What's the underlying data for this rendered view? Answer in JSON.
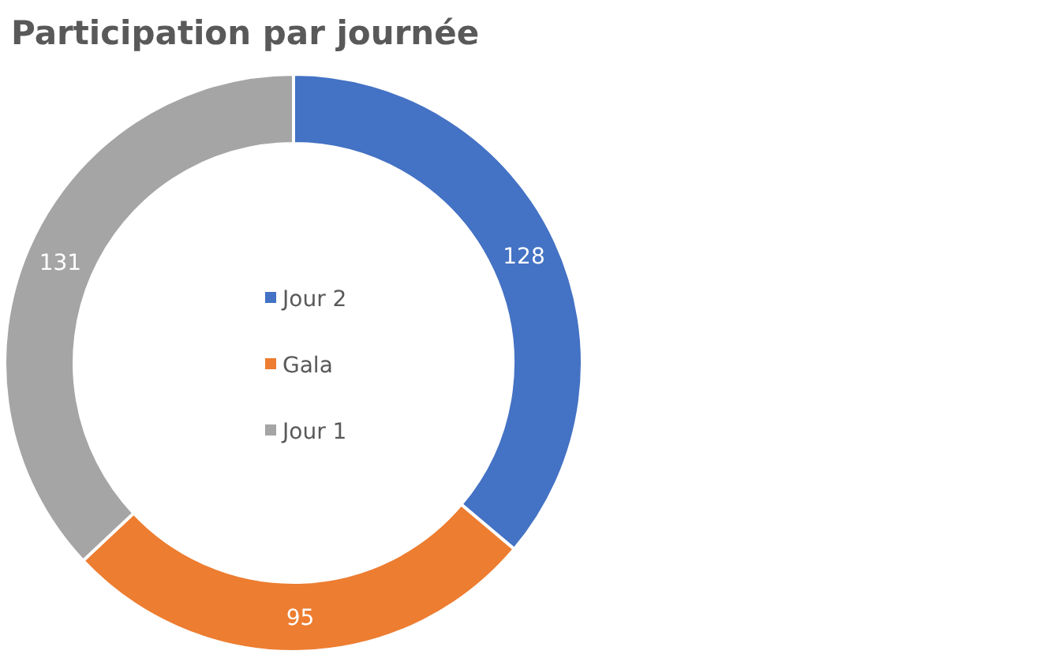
{
  "chart_data": {
    "type": "donut",
    "title": "Participation par journée",
    "categories": [
      "Jour 2",
      "Gala",
      "Jour 1"
    ],
    "values": [
      128,
      95,
      131
    ],
    "colors": [
      "#4472c4",
      "#ed7d31",
      "#a5a5a5"
    ],
    "data_labels": true,
    "legend": "center"
  }
}
